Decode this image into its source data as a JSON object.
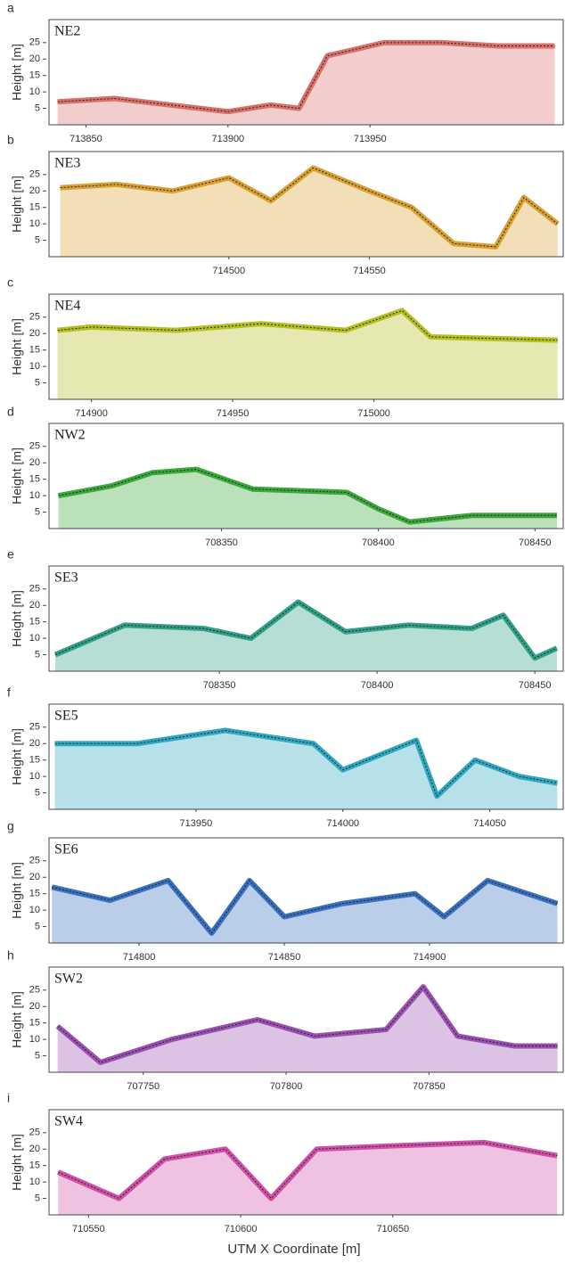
{
  "chart_data": [
    {
      "type": "area",
      "panel": "a",
      "site": "NE2",
      "ylabel": "Height [m]",
      "color": "#d9706a",
      "xlim": [
        713837,
        714018
      ],
      "xticks": [
        713850,
        713900,
        713950
      ],
      "ylim": [
        0,
        32
      ],
      "yticks": [
        5,
        10,
        15,
        20,
        25
      ],
      "x": [
        713840,
        713860,
        713880,
        713900,
        713915,
        713925,
        713935,
        713955,
        713975,
        713995,
        714015
      ],
      "values": [
        7,
        8,
        6,
        4,
        6,
        5,
        21,
        25,
        25,
        24,
        24
      ]
    },
    {
      "type": "area",
      "panel": "b",
      "site": "NE3",
      "ylabel": "Height [m]",
      "color": "#d9a030",
      "xlim": [
        714436,
        714619
      ],
      "xticks": [
        714500,
        714550
      ],
      "ylim": [
        0,
        32
      ],
      "yticks": [
        5,
        10,
        15,
        20,
        25
      ],
      "x": [
        714440,
        714460,
        714480,
        714500,
        714515,
        714530,
        714550,
        714565,
        714580,
        714595,
        714605,
        714617
      ],
      "values": [
        21,
        22,
        20,
        24,
        17,
        27,
        20,
        15,
        4,
        3,
        18,
        10
      ]
    },
    {
      "type": "area",
      "panel": "c",
      "site": "NE4",
      "ylabel": "Height [m]",
      "color": "#b5c020",
      "xlim": [
        714885,
        715067
      ],
      "xticks": [
        714900,
        714950,
        715000
      ],
      "ylim": [
        0,
        32
      ],
      "yticks": [
        5,
        10,
        15,
        20,
        25
      ],
      "x": [
        714888,
        714900,
        714930,
        714960,
        714990,
        715010,
        715020,
        715065
      ],
      "values": [
        21,
        22,
        21,
        23,
        21,
        27,
        19,
        18
      ]
    },
    {
      "type": "area",
      "panel": "d",
      "site": "NW2",
      "ylabel": "Height [m]",
      "color": "#3aa83a",
      "xlim": [
        708295,
        708459
      ],
      "xticks": [
        708350,
        708400,
        708450
      ],
      "ylim": [
        0,
        32
      ],
      "yticks": [
        5,
        10,
        15,
        20,
        25
      ],
      "x": [
        708298,
        708315,
        708328,
        708342,
        708360,
        708390,
        708400,
        708410,
        708430,
        708457
      ],
      "values": [
        10,
        13,
        17,
        18,
        12,
        11,
        6,
        2,
        4,
        4
      ]
    },
    {
      "type": "area",
      "panel": "e",
      "site": "SE3",
      "ylabel": "Height [m]",
      "color": "#30a088",
      "xlim": [
        708296,
        708459
      ],
      "xticks": [
        708350,
        708400,
        708450
      ],
      "ylim": [
        0,
        32
      ],
      "yticks": [
        5,
        10,
        15,
        20,
        25
      ],
      "x": [
        708298,
        708320,
        708345,
        708360,
        708375,
        708390,
        708410,
        708430,
        708440,
        708450,
        708457
      ],
      "values": [
        5,
        14,
        13,
        10,
        21,
        12,
        14,
        13,
        17,
        4,
        7
      ]
    },
    {
      "type": "area",
      "panel": "f",
      "site": "SE5",
      "ylabel": "Height [m]",
      "color": "#30a8c0",
      "xlim": [
        713900,
        714075
      ],
      "xticks": [
        713950,
        714000,
        714050
      ],
      "ylim": [
        0,
        32
      ],
      "yticks": [
        5,
        10,
        15,
        20,
        25
      ],
      "x": [
        713902,
        713930,
        713960,
        713990,
        714000,
        714025,
        714032,
        714045,
        714060,
        714073
      ],
      "values": [
        20,
        20,
        24,
        20,
        12,
        21,
        4,
        15,
        10,
        8
      ]
    },
    {
      "type": "area",
      "panel": "g",
      "site": "SE6",
      "ylabel": "Height [m]",
      "color": "#3a70c0",
      "xlim": [
        714769,
        714946
      ],
      "xticks": [
        714800,
        714850,
        714900
      ],
      "ylim": [
        0,
        32
      ],
      "yticks": [
        5,
        10,
        15,
        20,
        25
      ],
      "x": [
        714770,
        714790,
        714810,
        714825,
        714838,
        714850,
        714870,
        714895,
        714905,
        714920,
        714944
      ],
      "values": [
        17,
        13,
        19,
        3,
        19,
        8,
        12,
        15,
        8,
        19,
        12
      ]
    },
    {
      "type": "area",
      "panel": "h",
      "site": "SW2",
      "ylabel": "Height [m]",
      "color": "#9a50b0",
      "xlim": [
        707717,
        707897
      ],
      "xticks": [
        707750,
        707800,
        707850
      ],
      "ylim": [
        0,
        32
      ],
      "yticks": [
        5,
        10,
        15,
        20,
        25
      ],
      "x": [
        707720,
        707735,
        707760,
        707790,
        707810,
        707835,
        707848,
        707860,
        707880,
        707895
      ],
      "values": [
        14,
        3,
        10,
        16,
        11,
        13,
        26,
        11,
        8,
        8
      ]
    },
    {
      "type": "area",
      "panel": "i",
      "site": "SW4",
      "ylabel": "Height [m]",
      "color": "#d050a8",
      "xlim": [
        710537,
        710706
      ],
      "xticks": [
        710550,
        710600,
        710650
      ],
      "ylim": [
        0,
        32
      ],
      "yticks": [
        5,
        10,
        15,
        20,
        25
      ],
      "x": [
        710540,
        710560,
        710575,
        710595,
        710610,
        710625,
        710650,
        710680,
        710704
      ],
      "values": [
        13,
        5,
        17,
        20,
        5,
        20,
        21,
        22,
        18
      ]
    }
  ],
  "figure": {
    "xlabel": "UTM X Coordinate [m]"
  }
}
